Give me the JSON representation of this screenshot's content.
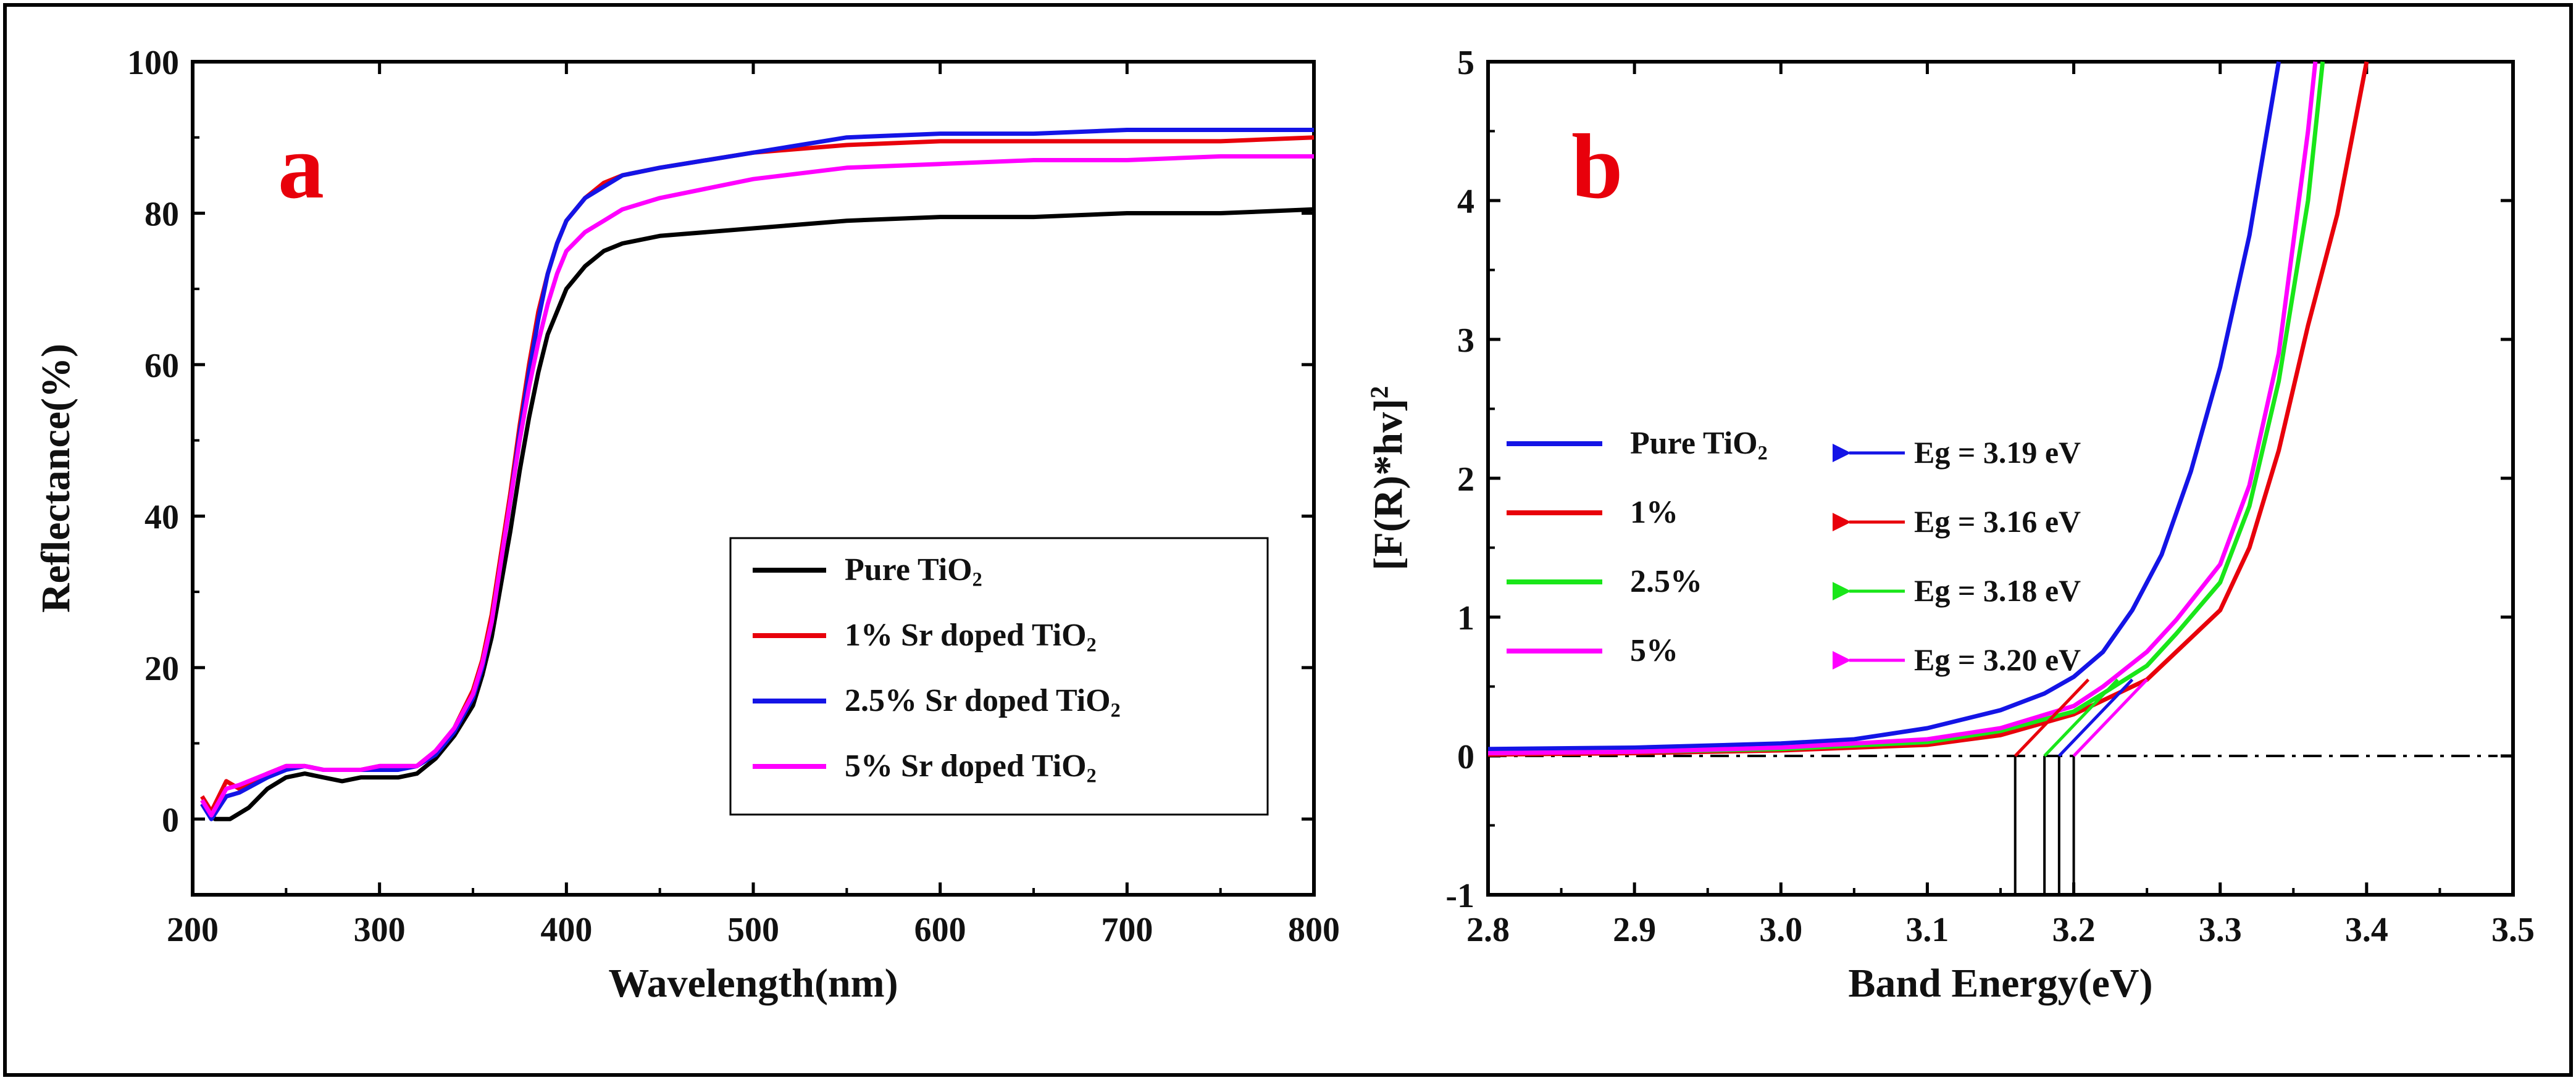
{
  "chart_data": [
    {
      "type": "line",
      "panel_label": "a",
      "xlabel": "Wavelength(nm)",
      "ylabel": "Reflectance(%)",
      "xlim": [
        200,
        800
      ],
      "ylim": [
        -10,
        100
      ],
      "xticks": [
        200,
        300,
        400,
        500,
        600,
        700,
        800
      ],
      "yticks": [
        0,
        20,
        40,
        60,
        80,
        100
      ],
      "legend_position": "bottom-right",
      "series": [
        {
          "name": "Pure TiO2",
          "color": "#000000",
          "x": [
            205,
            212,
            220,
            230,
            240,
            250,
            260,
            270,
            280,
            290,
            300,
            310,
            320,
            330,
            340,
            350,
            355,
            360,
            365,
            370,
            375,
            380,
            385,
            390,
            395,
            400,
            410,
            420,
            430,
            450,
            500,
            550,
            600,
            650,
            700,
            750,
            800
          ],
          "y": [
            2,
            0,
            0,
            1.5,
            4,
            5.5,
            6,
            5.5,
            5,
            5.5,
            5.5,
            5.5,
            6,
            8,
            11,
            15,
            19,
            24,
            31,
            38,
            46,
            53,
            59,
            64,
            67,
            70,
            73,
            75,
            76,
            77,
            78,
            79,
            79.5,
            79.5,
            80,
            80,
            80.5
          ]
        },
        {
          "name": "1% Sr doped TiO2",
          "color": "#e8000b",
          "x": [
            205,
            210,
            218,
            225,
            240,
            250,
            260,
            270,
            280,
            290,
            300,
            310,
            320,
            330,
            340,
            350,
            355,
            360,
            365,
            370,
            375,
            380,
            385,
            390,
            395,
            400,
            410,
            420,
            430,
            450,
            500,
            550,
            600,
            650,
            700,
            750,
            800
          ],
          "y": [
            3,
            1,
            5,
            4,
            6,
            7,
            7,
            6.5,
            6.5,
            6.5,
            7,
            7,
            7,
            9,
            12,
            17,
            21,
            27,
            35,
            43,
            52,
            60,
            67,
            72,
            76,
            79,
            82,
            84,
            85,
            86,
            88,
            89,
            89.5,
            89.5,
            89.5,
            89.5,
            90
          ]
        },
        {
          "name": "2.5% Sr doped TiO2",
          "color": "#1414e6",
          "x": [
            205,
            210,
            218,
            225,
            240,
            250,
            260,
            270,
            280,
            290,
            300,
            310,
            320,
            330,
            340,
            350,
            355,
            360,
            365,
            370,
            375,
            380,
            385,
            390,
            395,
            400,
            410,
            420,
            430,
            450,
            500,
            550,
            600,
            650,
            700,
            750,
            800
          ],
          "y": [
            2,
            0,
            3,
            3.5,
            5.5,
            6.5,
            7,
            6.5,
            6.5,
            6.5,
            6.5,
            6.5,
            7,
            8.5,
            11.5,
            16,
            20,
            26,
            34,
            42,
            51,
            59,
            66,
            72,
            76,
            79,
            82,
            83.5,
            85,
            86,
            88,
            90,
            90.5,
            90.5,
            91,
            91,
            91
          ]
        },
        {
          "name": "5% Sr doped TiO2",
          "color": "#ff00ff",
          "x": [
            205,
            210,
            218,
            225,
            240,
            250,
            260,
            270,
            280,
            290,
            300,
            310,
            320,
            330,
            340,
            350,
            355,
            360,
            365,
            370,
            375,
            380,
            385,
            390,
            395,
            400,
            410,
            420,
            430,
            450,
            500,
            550,
            600,
            650,
            700,
            750,
            800
          ],
          "y": [
            2.5,
            0.5,
            4,
            4.5,
            6,
            7,
            7,
            6.5,
            6.5,
            6.5,
            7,
            7,
            7,
            9,
            12,
            16.5,
            20.5,
            26,
            34,
            42,
            50,
            57,
            63,
            68,
            72,
            75,
            77.5,
            79,
            80.5,
            82,
            84.5,
            86,
            86.5,
            87,
            87,
            87.5,
            87.5
          ]
        }
      ]
    },
    {
      "type": "line",
      "panel_label": "b",
      "xlabel": "Band Energy(eV)",
      "ylabel": "[F(R)*hv]2",
      "xlim": [
        2.8,
        3.5
      ],
      "ylim": [
        -1,
        5
      ],
      "xticks": [
        "2.8",
        "2.9",
        "3.0",
        "3.1",
        "3.2",
        "3.3",
        "3.4",
        "3.5"
      ],
      "yticks": [
        "-1",
        "0",
        "1",
        "2",
        "3",
        "4",
        "5"
      ],
      "baseline_y": 0,
      "legend_position": "middle-left",
      "series": [
        {
          "name": "Pure TiO2",
          "color": "#1414e6",
          "eg_label": "Eg = 3.19 eV",
          "eg": 3.19,
          "x": [
            2.8,
            2.9,
            3.0,
            3.05,
            3.1,
            3.15,
            3.18,
            3.2,
            3.22,
            3.24,
            3.26,
            3.28,
            3.3,
            3.32,
            3.34
          ],
          "y": [
            0.05,
            0.06,
            0.09,
            0.12,
            0.2,
            0.33,
            0.45,
            0.57,
            0.75,
            1.05,
            1.45,
            2.05,
            2.8,
            3.75,
            5.0
          ]
        },
        {
          "name": "1%",
          "color": "#e8000b",
          "eg_label": "Eg = 3.16 eV",
          "eg": 3.16,
          "x": [
            2.8,
            2.9,
            3.0,
            3.1,
            3.15,
            3.2,
            3.22,
            3.25,
            3.27,
            3.3,
            3.32,
            3.34,
            3.36,
            3.38,
            3.4
          ],
          "y": [
            0.01,
            0.02,
            0.04,
            0.08,
            0.15,
            0.3,
            0.4,
            0.55,
            0.75,
            1.05,
            1.5,
            2.2,
            3.1,
            3.9,
            5.0
          ]
        },
        {
          "name": "2.5%",
          "color": "#19e619",
          "eg_label": "Eg = 3.18 eV",
          "eg": 3.18,
          "x": [
            2.8,
            2.9,
            3.0,
            3.1,
            3.15,
            3.2,
            3.22,
            3.25,
            3.27,
            3.3,
            3.32,
            3.34,
            3.36,
            3.37
          ],
          "y": [
            0.02,
            0.03,
            0.05,
            0.1,
            0.18,
            0.32,
            0.45,
            0.65,
            0.88,
            1.25,
            1.8,
            2.7,
            4.0,
            5.0
          ]
        },
        {
          "name": "5%",
          "color": "#ff00ff",
          "eg_label": "Eg = 3.20 eV",
          "eg": 3.2,
          "x": [
            2.8,
            2.9,
            3.0,
            3.1,
            3.15,
            3.2,
            3.22,
            3.25,
            3.27,
            3.3,
            3.32,
            3.34,
            3.36,
            3.365
          ],
          "y": [
            0.02,
            0.03,
            0.06,
            0.12,
            0.2,
            0.36,
            0.5,
            0.75,
            0.98,
            1.38,
            1.95,
            2.9,
            4.5,
            5.0
          ]
        }
      ]
    }
  ]
}
